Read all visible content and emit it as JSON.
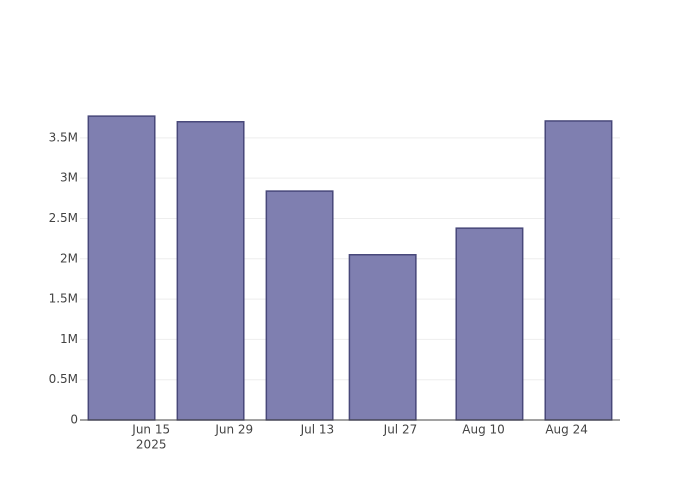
{
  "chart_data": {
    "type": "bar",
    "x": [
      "2025-06-10",
      "2025-06-25",
      "2025-07-10",
      "2025-07-24",
      "2025-08-11",
      "2025-08-26"
    ],
    "values": [
      3770000,
      3700000,
      2840000,
      2050000,
      2380000,
      3710000
    ],
    "color": "#7f7fb0",
    "edge_color": "#48487a",
    "xlim": [
      "2025-06-03",
      "2025-09-02"
    ],
    "xticks": [
      {
        "value": "2025-06-15",
        "label": "Jun 15",
        "sublabel": "2025"
      },
      {
        "value": "2025-06-29",
        "label": "Jun 29"
      },
      {
        "value": "2025-07-13",
        "label": "Jul 13"
      },
      {
        "value": "2025-07-27",
        "label": "Jul 27"
      },
      {
        "value": "2025-08-10",
        "label": "Aug 10"
      },
      {
        "value": "2025-08-24",
        "label": "Aug 24"
      }
    ],
    "ylim": [
      0,
      3970000
    ],
    "yticks": [
      0,
      {
        "value": 500000,
        "label": "0.5M"
      },
      {
        "value": 1000000,
        "label": "1M"
      },
      {
        "value": 1500000,
        "label": "1.5M"
      },
      {
        "value": 2000000,
        "label": "2M"
      },
      {
        "value": 2500000,
        "label": "2.5M"
      },
      {
        "value": 3000000,
        "label": "3M"
      },
      {
        "value": 3500000,
        "label": "3.5M"
      }
    ],
    "grid": true
  }
}
